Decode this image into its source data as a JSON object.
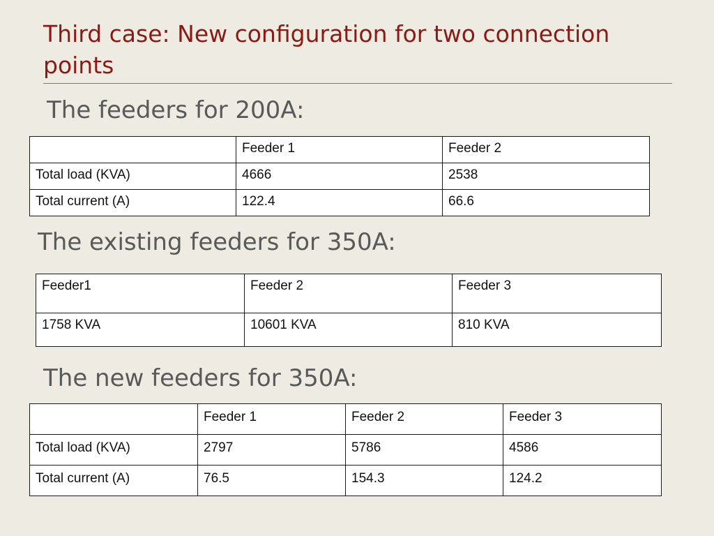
{
  "slide": {
    "title": "Third case:  New configuration for two connection points"
  },
  "sections": [
    {
      "heading": "The feeders for 200A:",
      "columns": [
        "",
        "Feeder 1",
        "Feeder 2"
      ],
      "rows": [
        [
          "Total load (KVA)",
          "4666",
          "2538"
        ],
        [
          "Total current (A)",
          "122.4",
          "66.6"
        ]
      ]
    },
    {
      "heading": "The existing feeders for 350A:",
      "columns": [
        "Feeder1",
        "Feeder 2",
        "Feeder 3"
      ],
      "rows": [
        [
          "1758 KVA",
          "10601 KVA",
          "810 KVA"
        ]
      ]
    },
    {
      "heading": "The new feeders for 350A:",
      "columns": [
        "",
        "Feeder 1",
        "Feeder 2",
        "Feeder 3"
      ],
      "rows": [
        [
          "Total load (KVA)",
          "2797",
          "5786",
          "4586"
        ],
        [
          "Total current (A)",
          "76.5",
          "154.3",
          "124.2"
        ]
      ]
    }
  ]
}
